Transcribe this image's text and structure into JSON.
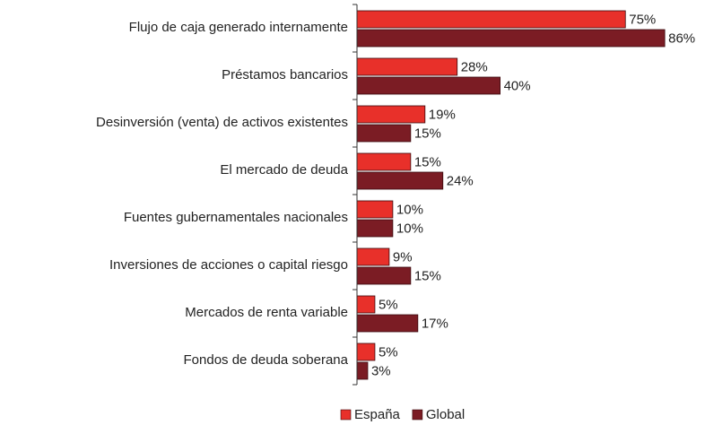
{
  "chart_data": {
    "type": "hbar",
    "categories": [
      "Flujo de caja generado internamente",
      "Préstamos bancarios",
      "Desinversión (venta) de activos existentes",
      "El mercado de deuda",
      "Fuentes gubernamentales nacionales",
      "Inversiones de acciones o capital riesgo",
      "Mercados de renta variable",
      "Fondos de deuda soberana"
    ],
    "series": [
      {
        "name": "España",
        "color": "#e8302a",
        "values": [
          75,
          28,
          19,
          15,
          10,
          9,
          5,
          5
        ],
        "value_labels": [
          "75%",
          "28%",
          "19%",
          "15%",
          "10%",
          "9%",
          "5%",
          "5%"
        ]
      },
      {
        "name": "Global",
        "color": "#7b1c24",
        "values": [
          86,
          40,
          15,
          24,
          10,
          15,
          17,
          3
        ],
        "value_labels": [
          "86%",
          "40%",
          "15%",
          "24%",
          "10%",
          "15%",
          "17%",
          "3%"
        ]
      }
    ],
    "legend": "bottom-right"
  }
}
